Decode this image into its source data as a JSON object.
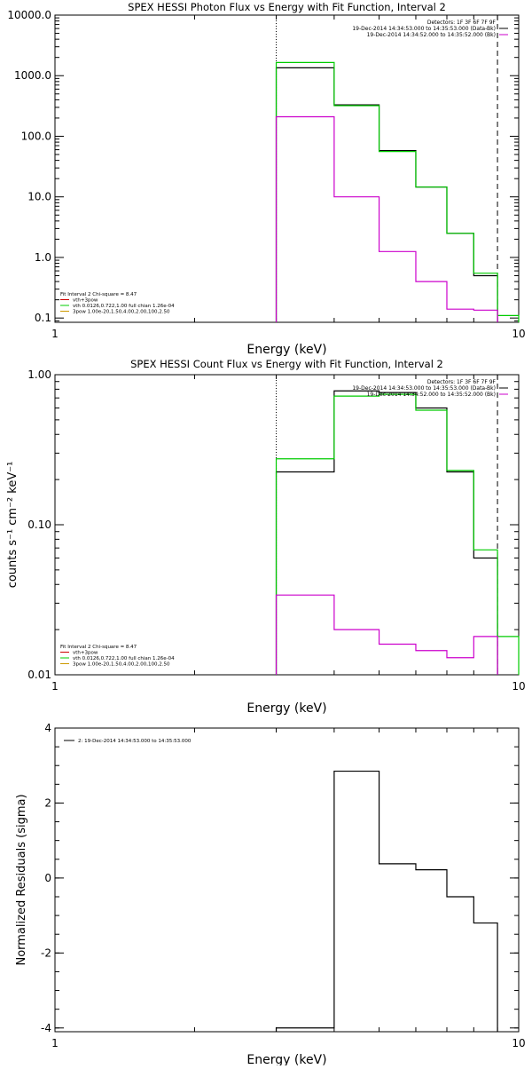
{
  "chart_data": [
    {
      "type": "line",
      "title": "SPEX HESSI Photon Flux vs Energy with Fit Function, Interval 2",
      "xlabel": "Energy (keV)",
      "ylabel": "",
      "xscale": "log",
      "yscale": "log",
      "xlim": [
        1,
        10
      ],
      "ylim": [
        0.085,
        10000
      ],
      "x_ticks": [
        {
          "value": 1,
          "label": "1"
        },
        {
          "value": 10,
          "label": "10"
        }
      ],
      "y_ticks": [
        {
          "value": 0.1,
          "label": "0.1"
        },
        {
          "value": 1,
          "label": "1.0"
        },
        {
          "value": 10,
          "label": "10.0"
        },
        {
          "value": 100,
          "label": "100.0"
        },
        {
          "value": 1000,
          "label": "1000.0"
        },
        {
          "value": 10000,
          "label": "10000.0"
        }
      ],
      "vlines": [
        {
          "x": 3.0,
          "style": "dotted"
        },
        {
          "x": 9.0,
          "style": "dashed"
        }
      ],
      "legend_top_right": [
        {
          "text": "Detectors: 1F 3F 6F 7F 9F",
          "color": "#000000"
        },
        {
          "text": "19-Dec-2014 14:34:53.000 to 14:35:53.000 (Data-Bk)",
          "color": "#000000"
        },
        {
          "text": "19-Dec-2014 14:34:52.000 to 14:35:52.000 (Bk)",
          "color": "#cc00cc"
        }
      ],
      "legend_bottom_left": [
        {
          "text": "Fit Interval 2   Chi-square = 8.47",
          "color": "#000000"
        },
        {
          "text": "vth+3pow",
          "color": "#cc0000"
        },
        {
          "text": "vth 0.0126,0.722,1.00  full chian 1.26e-04",
          "color": "#00cc00"
        },
        {
          "text": "3pow 1.00e-20,1.50,4.00,2.00,100,2.50",
          "color": "#cc9900"
        }
      ],
      "series": [
        {
          "color": "#000000",
          "bins": [
            3,
            4,
            5,
            6,
            7,
            8,
            9
          ],
          "values": [
            1350,
            330,
            58,
            14.5,
            2.5,
            0.5
          ]
        },
        {
          "color": "#00cc00",
          "bins": [
            3,
            4,
            5,
            6,
            7,
            8,
            9,
            10
          ],
          "values": [
            1650,
            320,
            56,
            14.5,
            2.5,
            0.55,
            0.11
          ]
        },
        {
          "color": "#cc00cc",
          "bins": [
            3,
            4,
            5,
            6,
            7,
            8,
            9
          ],
          "values": [
            210,
            10,
            1.25,
            0.4,
            0.14,
            0.135
          ]
        }
      ]
    },
    {
      "type": "line",
      "title": "SPEX HESSI Count Flux vs Energy with Fit Function, Interval 2",
      "xlabel": "Energy (keV)",
      "ylabel": "counts s⁻¹ cm⁻² keV⁻¹",
      "xscale": "log",
      "yscale": "log",
      "xlim": [
        1,
        10
      ],
      "ylim": [
        0.01,
        1.0
      ],
      "x_ticks": [
        {
          "value": 1,
          "label": "1"
        },
        {
          "value": 10,
          "label": "10"
        }
      ],
      "y_ticks": [
        {
          "value": 0.01,
          "label": "0.01"
        },
        {
          "value": 0.1,
          "label": "0.10"
        },
        {
          "value": 1,
          "label": "1.00"
        }
      ],
      "vlines": [
        {
          "x": 3.0,
          "style": "dotted"
        },
        {
          "x": 9.0,
          "style": "dashed"
        }
      ],
      "legend_top_right": [
        {
          "text": "Detectors: 1F 3F 6F 7F 9F",
          "color": "#000000"
        },
        {
          "text": "19-Dec-2014 14:34:53.000 to 14:35:53.000 (Data-Bk)",
          "color": "#000000"
        },
        {
          "text": "19-Dec-2014 14:34:52.000 to 14:35:52.000 (Bk)",
          "color": "#cc00cc"
        }
      ],
      "legend_bottom_left": [
        {
          "text": "Fit Interval 2   Chi-square = 8.47",
          "color": "#000000"
        },
        {
          "text": "vth+3pow",
          "color": "#cc0000"
        },
        {
          "text": "vth 0.0126,0.722,1.00  full chian 1.26e-04",
          "color": "#00cc00"
        },
        {
          "text": "3pow 1.00e-20,1.50,4.00,2.00,100,2.50",
          "color": "#cc9900"
        }
      ],
      "series": [
        {
          "color": "#000000",
          "bins": [
            3,
            4,
            5,
            6,
            7,
            8,
            9
          ],
          "values": [
            0.225,
            0.78,
            0.76,
            0.6,
            0.225,
            0.06
          ]
        },
        {
          "color": "#00cc00",
          "bins": [
            3,
            4,
            5,
            6,
            7,
            8,
            9,
            10
          ],
          "values": [
            0.275,
            0.72,
            0.74,
            0.58,
            0.23,
            0.068,
            0.018
          ]
        },
        {
          "color": "#cc00cc",
          "bins": [
            3,
            4,
            5,
            6,
            7,
            8,
            9
          ],
          "values": [
            0.034,
            0.02,
            0.016,
            0.0145,
            0.013,
            0.018
          ]
        }
      ]
    },
    {
      "type": "line",
      "title": "",
      "xlabel": "Energy (keV)",
      "ylabel": "Normalized Residuals (sigma)",
      "xscale": "log",
      "yscale": "linear",
      "xlim": [
        1,
        10
      ],
      "ylim": [
        -4.1,
        4
      ],
      "x_ticks": [
        {
          "value": 1,
          "label": "1"
        },
        {
          "value": 10,
          "label": "10"
        }
      ],
      "y_ticks": [
        {
          "value": -4,
          "label": "-4"
        },
        {
          "value": -2,
          "label": "-2"
        },
        {
          "value": 0,
          "label": "0"
        },
        {
          "value": 2,
          "label": "2"
        },
        {
          "value": 4,
          "label": "4"
        }
      ],
      "vlines": [],
      "legend_top_right": [],
      "legend_bottom_left": [],
      "legend_top_left": [
        {
          "text": "2: 19-Dec-2014 14:34:53.000 to 14:35:53.000",
          "color": "#000000"
        }
      ],
      "series": [
        {
          "color": "#000000",
          "bins": [
            3,
            4,
            5,
            6,
            7,
            8,
            9
          ],
          "values": [
            -4.0,
            2.85,
            0.38,
            0.22,
            -0.5,
            -1.2
          ]
        }
      ]
    }
  ]
}
